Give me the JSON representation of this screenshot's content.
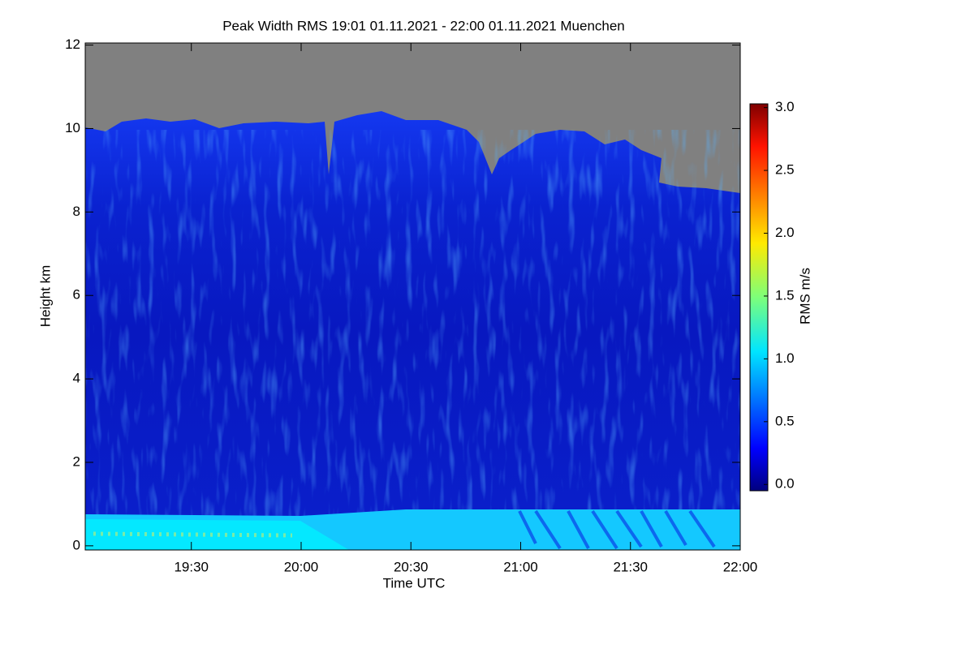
{
  "chart_data": {
    "type": "heatmap",
    "title": "Peak Width RMS   19:01 01.11.2021 - 22:00 01.11.2021 Muenchen",
    "x_label": "Time UTC",
    "y_label": "Height km",
    "colorbar_label": "RMS m/s",
    "colormap": "jet",
    "xlim": [
      19.0167,
      22.0
    ],
    "xticks": [
      {
        "value": 19.5,
        "label": "19:30"
      },
      {
        "value": 20.0,
        "label": "20:00"
      },
      {
        "value": 20.5,
        "label": "20:30"
      },
      {
        "value": 21.0,
        "label": "21:00"
      },
      {
        "value": 21.5,
        "label": "21:30"
      },
      {
        "value": 22.0,
        "label": "22:00"
      }
    ],
    "ylim": [
      -0.1,
      12.05
    ],
    "yticks": [
      0,
      2,
      4,
      6,
      8,
      10,
      12
    ],
    "zlim": [
      -0.05,
      3.03
    ],
    "zticks": [
      {
        "value": 0,
        "label": "0.0"
      },
      {
        "value": 0.5,
        "label": "0.5"
      },
      {
        "value": 1,
        "label": "1.0"
      },
      {
        "value": 1.5,
        "label": "1.5"
      },
      {
        "value": 2,
        "label": "2.0"
      },
      {
        "value": 2.5,
        "label": "2.5"
      },
      {
        "value": 3,
        "label": "3.0"
      }
    ]
  }
}
